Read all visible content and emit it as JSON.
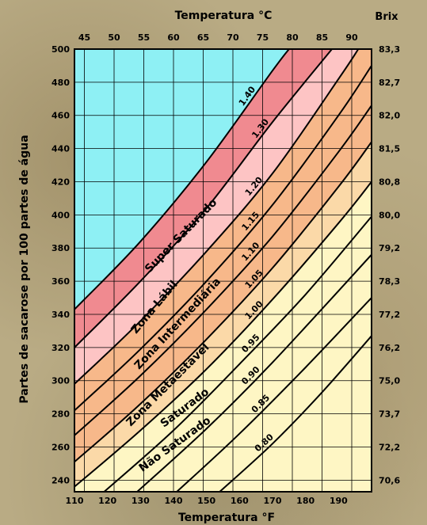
{
  "chart_data": {
    "type": "line",
    "top_axis_title": "Temperatura °C",
    "bottom_axis_title": "Temperatura °F",
    "left_axis_title": "Partes de sacarose por 100 partes de água",
    "right_axis_title": "Brix",
    "celsius_ticks": [
      45,
      50,
      55,
      60,
      65,
      70,
      75,
      80,
      85,
      90
    ],
    "fahrenheit_ticks": [
      110,
      120,
      130,
      140,
      150,
      160,
      170,
      180,
      190
    ],
    "y_ticks": [
      240,
      260,
      280,
      300,
      320,
      340,
      360,
      380,
      400,
      420,
      440,
      460,
      480,
      500
    ],
    "brix_ticks": [
      "70,6",
      "72,2",
      "73,7",
      "75,0",
      "76,2",
      "77,2",
      "78,3",
      "79,2",
      "80,0",
      "80,8",
      "81,5",
      "82,0",
      "82,7",
      "83,3"
    ],
    "xlim_f": [
      110,
      200
    ],
    "ylim": [
      233,
      500
    ],
    "curves": [
      {
        "ratio": "0.80",
        "points": [
          [
            154,
            233
          ],
          [
            170,
            262
          ],
          [
            185,
            293
          ],
          [
            200,
            327
          ]
        ]
      },
      {
        "ratio": "0.85",
        "points": [
          [
            141,
            233
          ],
          [
            160,
            268
          ],
          [
            180,
            308
          ],
          [
            200,
            350
          ]
        ]
      },
      {
        "ratio": "0.90",
        "points": [
          [
            129,
            233
          ],
          [
            150,
            271
          ],
          [
            170,
            311
          ],
          [
            200,
            376
          ]
        ]
      },
      {
        "ratio": "0.95",
        "points": [
          [
            119,
            233
          ],
          [
            140,
            270
          ],
          [
            160,
            310
          ],
          [
            180,
            352
          ],
          [
            200,
            399
          ]
        ]
      },
      {
        "ratio": "1.00",
        "points": [
          [
            110,
            236
          ],
          [
            130,
            270
          ],
          [
            150,
            307
          ],
          [
            170,
            349
          ],
          [
            190,
            395
          ],
          [
            200,
            420
          ]
        ]
      },
      {
        "ratio": "1.05",
        "points": [
          [
            110,
            251
          ],
          [
            130,
            286
          ],
          [
            150,
            325
          ],
          [
            170,
            368
          ],
          [
            190,
            417
          ],
          [
            200,
            444
          ]
        ]
      },
      {
        "ratio": "1.10",
        "points": [
          [
            110,
            267
          ],
          [
            130,
            303
          ],
          [
            150,
            343
          ],
          [
            170,
            387
          ],
          [
            190,
            438
          ],
          [
            200,
            466
          ]
        ]
      },
      {
        "ratio": "1.15",
        "points": [
          [
            110,
            282
          ],
          [
            130,
            319
          ],
          [
            150,
            360
          ],
          [
            170,
            406
          ],
          [
            190,
            460
          ],
          [
            200,
            490
          ]
        ]
      },
      {
        "ratio": "1.20",
        "points": [
          [
            110,
            298
          ],
          [
            130,
            336
          ],
          [
            150,
            378
          ],
          [
            170,
            425
          ],
          [
            190,
            482
          ],
          [
            196,
            500
          ]
        ]
      },
      {
        "ratio": "1.30",
        "points": [
          [
            110,
            320
          ],
          [
            130,
            360
          ],
          [
            150,
            404
          ],
          [
            170,
            456
          ],
          [
            188,
            500
          ]
        ]
      },
      {
        "ratio": "1.40",
        "points": [
          [
            110,
            343
          ],
          [
            130,
            384
          ],
          [
            150,
            432
          ],
          [
            170,
            487
          ],
          [
            175,
            500
          ]
        ]
      }
    ],
    "zones": [
      {
        "label": "Super Saturado",
        "color": "#8ef0f4"
      },
      {
        "label": "Zona Lábil",
        "color": "#f08a90"
      },
      {
        "label": "Zona Intermediária",
        "color": "#fdc4c4"
      },
      {
        "label": "Zona Metaestável",
        "color": "#f7b88a"
      },
      {
        "label": "Saturado",
        "color": "#fbd9a8"
      },
      {
        "label": "Não Saturado",
        "color": "#fef6c4"
      }
    ]
  }
}
